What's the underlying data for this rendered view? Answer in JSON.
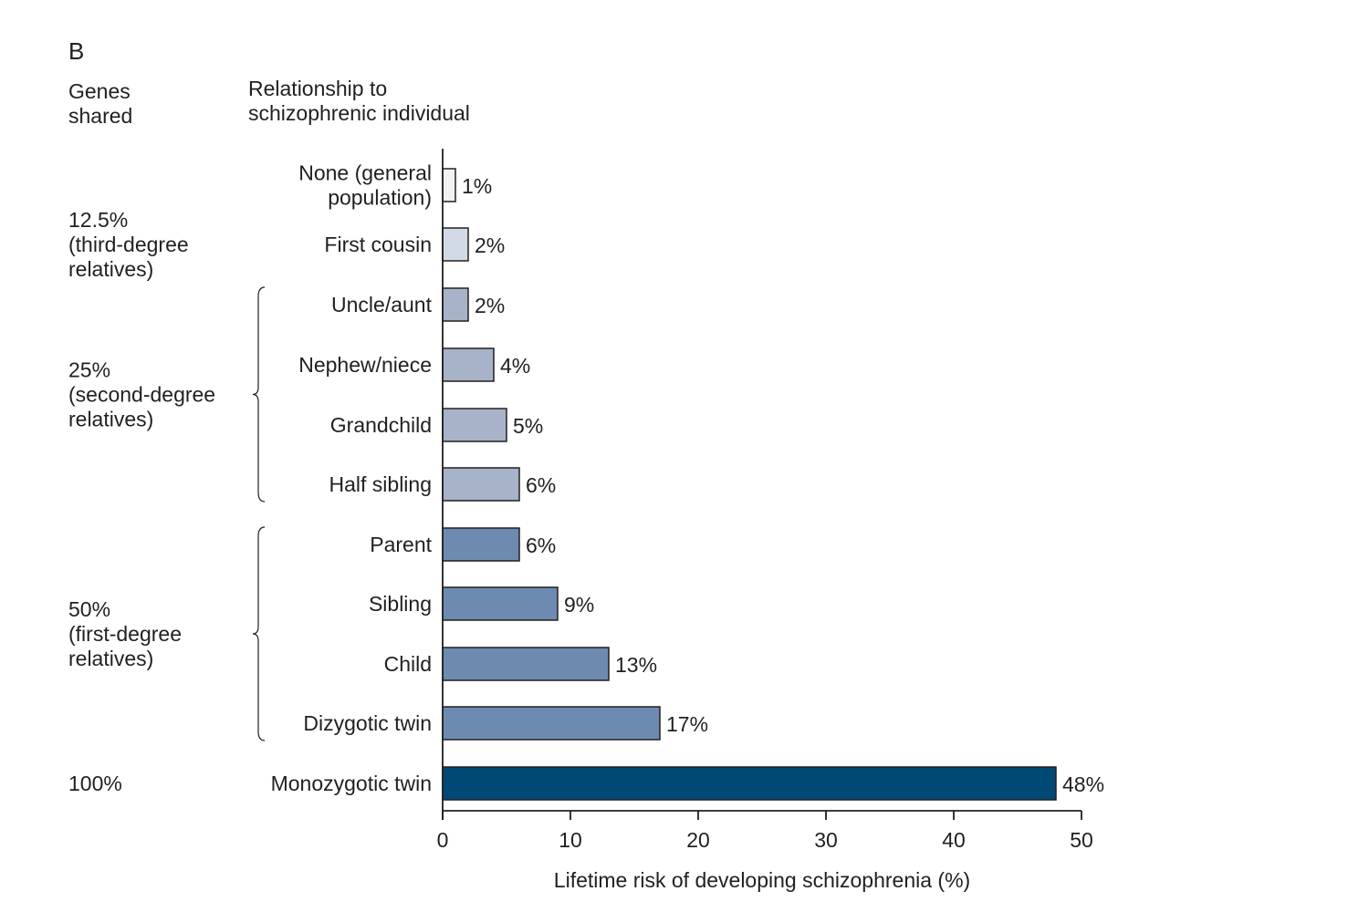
{
  "chart_data": {
    "type": "bar",
    "orientation": "horizontal",
    "panel_label": "B",
    "group_header": [
      "Genes",
      "shared"
    ],
    "category_header": [
      "Relationship to",
      "schizophrenic individual"
    ],
    "xlabel": "Lifetime risk of developing schizophrenia (%)",
    "xlim": [
      0,
      50
    ],
    "xticks": [
      "0",
      "10",
      "20",
      "30",
      "40",
      "50"
    ],
    "grid": false,
    "categories": [
      [
        "None (general",
        "population)"
      ],
      [
        "First cousin"
      ],
      [
        "Uncle/aunt"
      ],
      [
        "Nephew/niece"
      ],
      [
        "Grandchild"
      ],
      [
        "Half sibling"
      ],
      [
        "Parent"
      ],
      [
        "Sibling"
      ],
      [
        "Child"
      ],
      [
        "Dizygotic twin"
      ],
      [
        "Monozygotic twin"
      ]
    ],
    "values": [
      1,
      2,
      2,
      4,
      5,
      6,
      6,
      9,
      13,
      17,
      48
    ],
    "value_labels": [
      "1%",
      "2%",
      "2%",
      "4%",
      "5%",
      "6%",
      "6%",
      "9%",
      "13%",
      "17%",
      "48%"
    ],
    "bar_colors": [
      "#f1f2f4",
      "#d2dae5",
      "#a6b3c8",
      "#a6b3c8",
      "#a6b3c8",
      "#a6b3c8",
      "#6d8bb0",
      "#6d8bb0",
      "#6d8bb0",
      "#6d8bb0",
      "#004876"
    ],
    "groups": [
      {
        "lines": [
          "12.5%",
          "(third-degree",
          "relatives)"
        ],
        "first": 1,
        "last": 1,
        "bracket": false
      },
      {
        "lines": [
          "25%",
          "(second-degree",
          "relatives)"
        ],
        "first": 2,
        "last": 5,
        "bracket": true
      },
      {
        "lines": [
          "50%",
          "(first-degree",
          "relatives)"
        ],
        "first": 6,
        "last": 9,
        "bracket": true
      },
      {
        "lines": [
          "100%"
        ],
        "first": 10,
        "last": 10,
        "bracket": false
      }
    ]
  }
}
